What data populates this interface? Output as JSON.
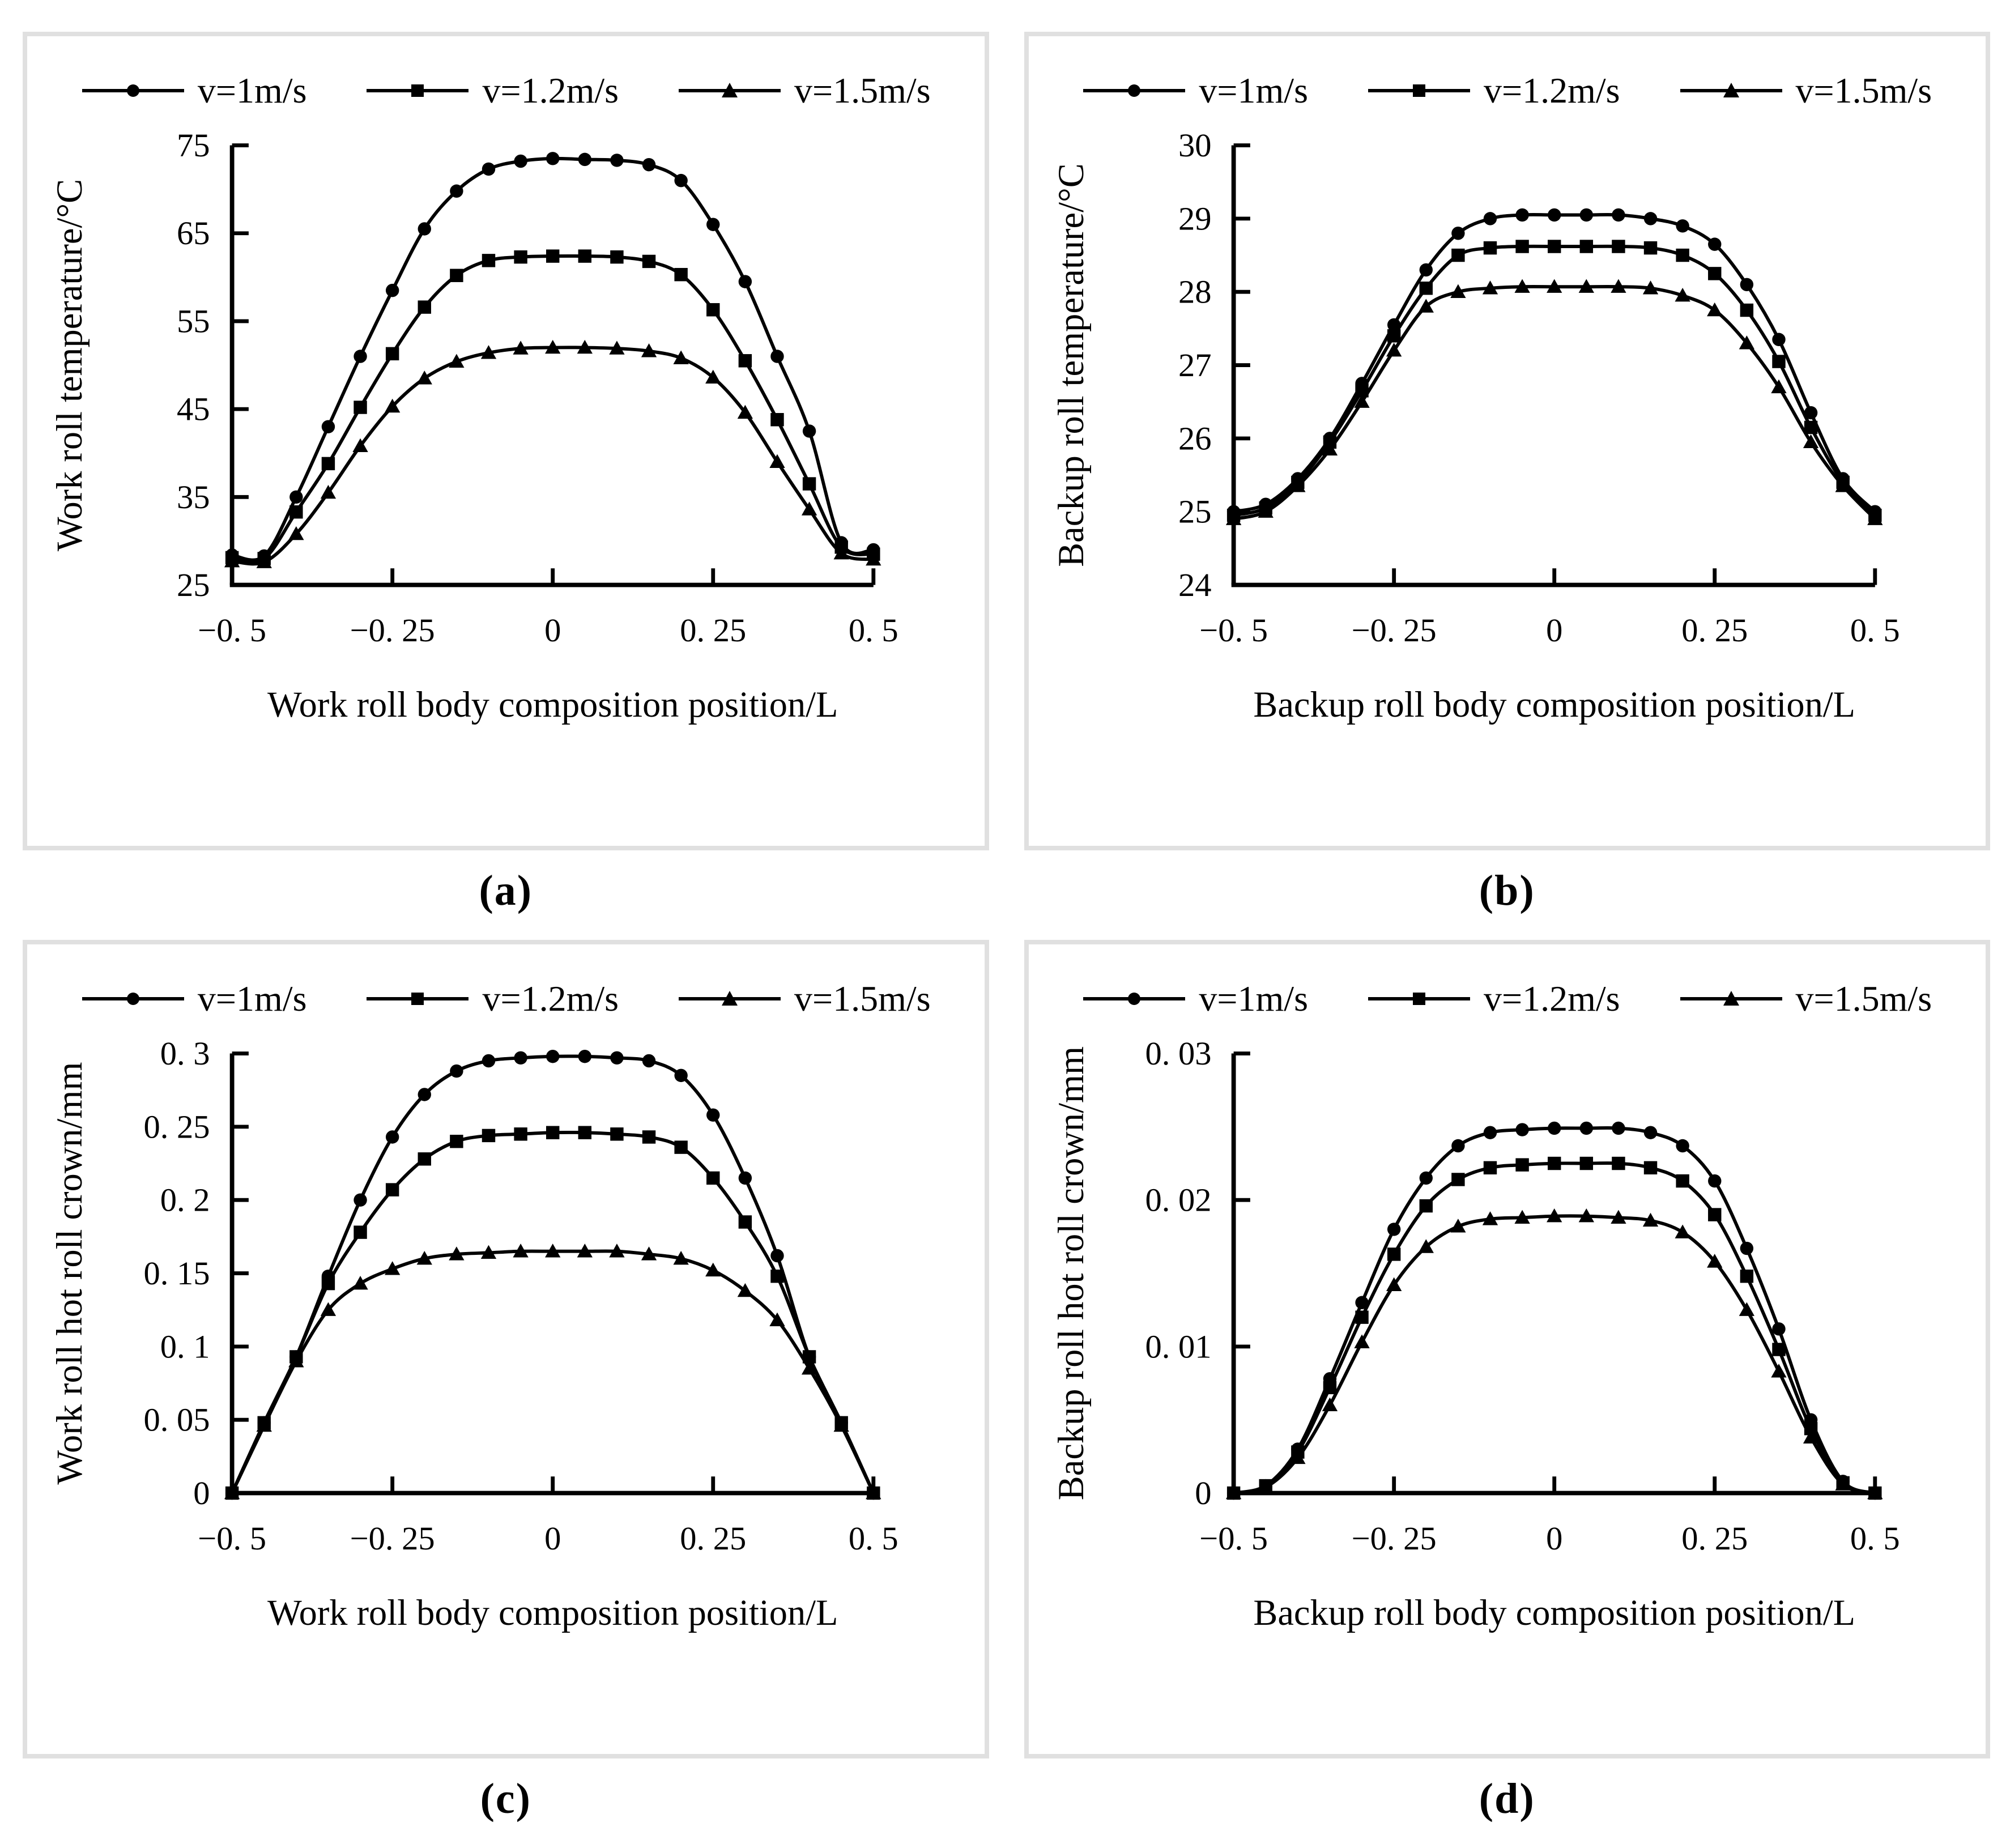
{
  "figure": {
    "background": "#ffffff",
    "panel_border_color": "#e0e0e0",
    "line_color": "#000000",
    "text_color": "#000000",
    "marker_shapes": [
      "circle",
      "square",
      "triangle"
    ]
  },
  "chart_data": [
    {
      "id": "a",
      "type": "line",
      "caption": "(a)",
      "xlabel": "Work roll body composition position/L",
      "ylabel": "Work roll temperature/°C",
      "xlim": [
        -0.5,
        0.5
      ],
      "ylim": [
        25,
        75
      ],
      "grid": false,
      "legend_position": "top",
      "xticks": {
        "values": [
          -0.5,
          -0.25,
          0,
          0.25,
          0.5
        ],
        "labels": [
          "−0. 5",
          "−0. 25",
          "0",
          "0. 25",
          "0. 5"
        ]
      },
      "yticks": {
        "values": [
          25,
          35,
          45,
          55,
          65,
          75
        ],
        "labels": [
          "25",
          "35",
          "45",
          "55",
          "65",
          "75"
        ]
      },
      "x": [
        -0.5,
        -0.45,
        -0.4,
        -0.35,
        -0.3,
        -0.25,
        -0.2,
        -0.15,
        -0.1,
        -0.05,
        0,
        0.05,
        0.1,
        0.15,
        0.2,
        0.25,
        0.3,
        0.35,
        0.4,
        0.45,
        0.5
      ],
      "series": [
        {
          "name": "v=1m/s",
          "marker": "circle",
          "values": [
            28.4,
            28.3,
            35.0,
            43.0,
            51.0,
            58.5,
            65.5,
            69.8,
            72.3,
            73.2,
            73.5,
            73.4,
            73.3,
            72.8,
            71.0,
            66.0,
            59.5,
            51.0,
            42.5,
            29.8,
            29.0
          ]
        },
        {
          "name": "v=1.2m/s",
          "marker": "square",
          "values": [
            28.1,
            28.0,
            33.3,
            38.8,
            45.2,
            51.3,
            56.6,
            60.2,
            61.9,
            62.3,
            62.4,
            62.4,
            62.3,
            61.8,
            60.3,
            56.3,
            50.5,
            43.8,
            36.5,
            29.3,
            28.5
          ]
        },
        {
          "name": "v=1.5m/s",
          "marker": "triangle",
          "values": [
            27.7,
            27.6,
            30.8,
            35.5,
            40.8,
            45.3,
            48.5,
            50.4,
            51.4,
            51.9,
            52.0,
            52.0,
            51.9,
            51.6,
            50.8,
            48.6,
            44.6,
            39.0,
            33.6,
            28.6,
            27.9
          ]
        }
      ]
    },
    {
      "id": "b",
      "type": "line",
      "caption": "(b)",
      "xlabel": "Backup roll body composition position/L",
      "ylabel": "Backup roll temperature/°C",
      "xlim": [
        -0.5,
        0.5
      ],
      "ylim": [
        24,
        30
      ],
      "grid": false,
      "legend_position": "top",
      "xticks": {
        "values": [
          -0.5,
          -0.25,
          0,
          0.25,
          0.5
        ],
        "labels": [
          "−0. 5",
          "−0. 25",
          "0",
          "0. 25",
          "0. 5"
        ]
      },
      "yticks": {
        "values": [
          24,
          25,
          26,
          27,
          28,
          29,
          30
        ],
        "labels": [
          "24",
          "25",
          "26",
          "27",
          "28",
          "29",
          "30"
        ]
      },
      "x": [
        -0.5,
        -0.45,
        -0.4,
        -0.35,
        -0.3,
        -0.25,
        -0.2,
        -0.15,
        -0.1,
        -0.05,
        0,
        0.05,
        0.1,
        0.15,
        0.2,
        0.25,
        0.3,
        0.35,
        0.4,
        0.45,
        0.5
      ],
      "series": [
        {
          "name": "v=1m/s",
          "marker": "circle",
          "values": [
            25.0,
            25.1,
            25.45,
            26.0,
            26.75,
            27.55,
            28.3,
            28.8,
            29.0,
            29.05,
            29.05,
            29.05,
            29.05,
            29.0,
            28.9,
            28.65,
            28.1,
            27.35,
            26.35,
            25.45,
            25.0
          ]
        },
        {
          "name": "v=1.2m/s",
          "marker": "square",
          "values": [
            24.95,
            25.05,
            25.4,
            25.95,
            26.65,
            27.4,
            28.05,
            28.5,
            28.6,
            28.62,
            28.62,
            28.62,
            28.62,
            28.6,
            28.5,
            28.25,
            27.75,
            27.05,
            26.15,
            25.4,
            24.95
          ]
        },
        {
          "name": "v=1.5m/s",
          "marker": "triangle",
          "values": [
            24.9,
            25.0,
            25.35,
            25.85,
            26.5,
            27.2,
            27.8,
            28.0,
            28.05,
            28.07,
            28.07,
            28.07,
            28.07,
            28.05,
            27.95,
            27.75,
            27.3,
            26.7,
            25.95,
            25.35,
            24.9
          ]
        }
      ]
    },
    {
      "id": "c",
      "type": "line",
      "caption": "(c)",
      "xlabel": "Work roll body composition position/L",
      "ylabel": "Work roll hot roll crown/mm",
      "xlim": [
        -0.5,
        0.5
      ],
      "ylim": [
        0,
        0.3
      ],
      "grid": false,
      "legend_position": "top",
      "xticks": {
        "values": [
          -0.5,
          -0.25,
          0,
          0.25,
          0.5
        ],
        "labels": [
          "−0. 5",
          "−0. 25",
          "0",
          "0. 25",
          "0. 5"
        ]
      },
      "yticks": {
        "values": [
          0,
          0.05,
          0.1,
          0.15,
          0.2,
          0.25,
          0.3
        ],
        "labels": [
          "0",
          "0. 05",
          "0. 1",
          "0. 15",
          "0. 2",
          "0. 25",
          "0. 3"
        ]
      },
      "x": [
        -0.5,
        -0.45,
        -0.4,
        -0.35,
        -0.3,
        -0.25,
        -0.2,
        -0.15,
        -0.1,
        -0.05,
        0,
        0.05,
        0.1,
        0.15,
        0.2,
        0.25,
        0.3,
        0.35,
        0.4,
        0.45,
        0.5
      ],
      "series": [
        {
          "name": "v=1m/s",
          "marker": "circle",
          "values": [
            0,
            0.048,
            0.093,
            0.148,
            0.2,
            0.243,
            0.272,
            0.288,
            0.295,
            0.297,
            0.298,
            0.298,
            0.297,
            0.295,
            0.285,
            0.258,
            0.215,
            0.162,
            0.093,
            0.048,
            0
          ]
        },
        {
          "name": "v=1.2m/s",
          "marker": "square",
          "values": [
            0,
            0.048,
            0.093,
            0.143,
            0.178,
            0.207,
            0.228,
            0.24,
            0.244,
            0.245,
            0.246,
            0.246,
            0.245,
            0.243,
            0.236,
            0.215,
            0.185,
            0.148,
            0.093,
            0.048,
            0
          ]
        },
        {
          "name": "v=1.5m/s",
          "marker": "triangle",
          "values": [
            0,
            0.046,
            0.09,
            0.125,
            0.143,
            0.153,
            0.16,
            0.163,
            0.164,
            0.165,
            0.165,
            0.165,
            0.165,
            0.163,
            0.16,
            0.152,
            0.138,
            0.118,
            0.085,
            0.046,
            0
          ]
        }
      ]
    },
    {
      "id": "d",
      "type": "line",
      "caption": "(d)",
      "xlabel": "Backup roll body composition position/L",
      "ylabel": "Backup roll hot roll crown/mm",
      "xlim": [
        -0.5,
        0.5
      ],
      "ylim": [
        0,
        0.03
      ],
      "grid": false,
      "legend_position": "top",
      "xticks": {
        "values": [
          -0.5,
          -0.25,
          0,
          0.25,
          0.5
        ],
        "labels": [
          "−0. 5",
          "−0. 25",
          "0",
          "0. 25",
          "0. 5"
        ]
      },
      "yticks": {
        "values": [
          0,
          0.01,
          0.02,
          0.03
        ],
        "labels": [
          "0",
          "0. 01",
          "0. 02",
          "0. 03"
        ]
      },
      "x": [
        -0.5,
        -0.45,
        -0.4,
        -0.35,
        -0.3,
        -0.25,
        -0.2,
        -0.15,
        -0.1,
        -0.05,
        0,
        0.05,
        0.1,
        0.15,
        0.2,
        0.25,
        0.3,
        0.35,
        0.4,
        0.45,
        0.5
      ],
      "series": [
        {
          "name": "v=1m/s",
          "marker": "circle",
          "values": [
            0,
            0.0005,
            0.003,
            0.0078,
            0.013,
            0.018,
            0.0215,
            0.0237,
            0.0246,
            0.0248,
            0.0249,
            0.0249,
            0.0249,
            0.0246,
            0.0237,
            0.0213,
            0.0167,
            0.0112,
            0.005,
            0.0008,
            0
          ]
        },
        {
          "name": "v=1.2m/s",
          "marker": "square",
          "values": [
            0,
            0.0005,
            0.0028,
            0.0072,
            0.012,
            0.0163,
            0.0196,
            0.0214,
            0.0222,
            0.0224,
            0.0225,
            0.0225,
            0.0225,
            0.0222,
            0.0213,
            0.019,
            0.0148,
            0.0098,
            0.0044,
            0.0007,
            0
          ]
        },
        {
          "name": "v=1.5m/s",
          "marker": "triangle",
          "values": [
            0,
            0.0004,
            0.0024,
            0.006,
            0.0103,
            0.0142,
            0.0168,
            0.0182,
            0.0187,
            0.0188,
            0.0189,
            0.0189,
            0.0188,
            0.0186,
            0.0178,
            0.0158,
            0.0125,
            0.0083,
            0.0038,
            0.0006,
            0
          ]
        }
      ]
    }
  ]
}
